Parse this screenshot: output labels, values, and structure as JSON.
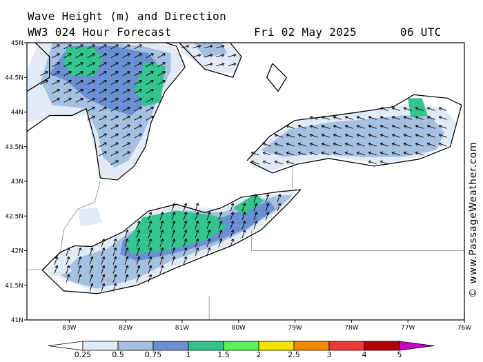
{
  "title": {
    "line1": "Wave Height (m) and Direction",
    "model": "WW3 024 Hour Forecast",
    "date": "Fri 02 May 2025",
    "time": "06 UTC"
  },
  "credit": "© www.PassageWeather.com",
  "map": {
    "lon_min": -83.75,
    "lon_max": -76.0,
    "lat_min": 41.0,
    "lat_max": 45.0,
    "lat_ticks": [
      {
        "v": 45.0,
        "label": "45N"
      },
      {
        "v": 44.5,
        "label": "44.5N"
      },
      {
        "v": 44.0,
        "label": "44N"
      },
      {
        "v": 43.5,
        "label": "43.5N"
      },
      {
        "v": 43.0,
        "label": "43N"
      },
      {
        "v": 42.5,
        "label": "42.5N"
      },
      {
        "v": 42.0,
        "label": "42N"
      },
      {
        "v": 41.5,
        "label": "41.5N"
      },
      {
        "v": 41.0,
        "label": "41N"
      }
    ],
    "lon_ticks": [
      {
        "v": -83,
        "label": "83W"
      },
      {
        "v": -82,
        "label": "82W"
      },
      {
        "v": -81,
        "label": "81W"
      },
      {
        "v": -80,
        "label": "80W"
      },
      {
        "v": -79,
        "label": "79W"
      },
      {
        "v": -78,
        "label": "78W"
      },
      {
        "v": -77,
        "label": "77W"
      },
      {
        "v": -76,
        "label": "76W"
      }
    ],
    "colors": {
      "h0": "#e2eaf6",
      "h1": "#a6c0e2",
      "h2": "#6a90d2",
      "h3": "#34c58e",
      "coast": "#000000",
      "border": "#a0a0a0"
    },
    "lake_huron": {
      "base": [
        [
          -83.55,
          45
        ],
        [
          -82.5,
          45
        ],
        [
          -82.1,
          44.95
        ],
        [
          -81.6,
          45.0
        ],
        [
          -81.15,
          44.95
        ],
        [
          -80.95,
          44.7
        ],
        [
          -81.3,
          44.3
        ],
        [
          -81.55,
          43.85
        ],
        [
          -81.65,
          43.5
        ],
        [
          -81.85,
          43.25
        ],
        [
          -82.15,
          43.05
        ],
        [
          -82.45,
          43.05
        ],
        [
          -82.55,
          43.5
        ],
        [
          -82.7,
          43.95
        ],
        [
          -83.2,
          43.95
        ],
        [
          -83.75,
          43.85
        ],
        [
          -83.75,
          44.6
        ]
      ],
      "mid": [
        [
          -83.3,
          45
        ],
        [
          -82.3,
          45
        ],
        [
          -81.7,
          44.95
        ],
        [
          -81.2,
          44.85
        ],
        [
          -81.2,
          44.6
        ],
        [
          -81.45,
          44.15
        ],
        [
          -81.7,
          43.65
        ],
        [
          -81.95,
          43.3
        ],
        [
          -82.2,
          43.2
        ],
        [
          -82.4,
          43.35
        ],
        [
          -82.5,
          43.7
        ],
        [
          -82.7,
          44.05
        ],
        [
          -83.3,
          44.1
        ],
        [
          -83.5,
          44.45
        ]
      ],
      "high": [
        [
          -82.95,
          44.95
        ],
        [
          -82.2,
          44.95
        ],
        [
          -81.6,
          44.85
        ],
        [
          -81.35,
          44.6
        ],
        [
          -81.55,
          44.2
        ],
        [
          -81.9,
          43.95
        ],
        [
          -82.3,
          44.05
        ],
        [
          -82.7,
          44.2
        ],
        [
          -83.05,
          44.45
        ],
        [
          -83.35,
          44.55
        ],
        [
          -83.1,
          44.85
        ]
      ],
      "top": [
        [
          [
            -83.05,
            44.92
          ],
          [
            -82.6,
            44.95
          ],
          [
            -82.4,
            44.78
          ],
          [
            -82.55,
            44.52
          ],
          [
            -82.95,
            44.52
          ],
          [
            -83.1,
            44.7
          ]
        ],
        [
          [
            -81.65,
            44.72
          ],
          [
            -81.3,
            44.66
          ],
          [
            -81.38,
            44.14
          ],
          [
            -81.68,
            44.08
          ],
          [
            -81.85,
            44.34
          ]
        ]
      ]
    },
    "georgian_bay": {
      "base": [
        [
          -81.05,
          45
        ],
        [
          -80.2,
          45
        ],
        [
          -79.95,
          44.8
        ],
        [
          -80.05,
          44.55
        ],
        [
          -80.55,
          44.6
        ],
        [
          -81.0,
          44.85
        ]
      ],
      "mid": [
        [
          -80.8,
          45
        ],
        [
          -80.3,
          45
        ],
        [
          -80.2,
          44.85
        ],
        [
          -80.6,
          44.78
        ]
      ]
    },
    "lake_erie": {
      "base": [
        [
          -83.4,
          41.7
        ],
        [
          -83.15,
          41.95
        ],
        [
          -82.9,
          42.05
        ],
        [
          -82.6,
          42.05
        ],
        [
          -82.05,
          42.25
        ],
        [
          -81.6,
          42.55
        ],
        [
          -81.1,
          42.65
        ],
        [
          -80.3,
          42.6
        ],
        [
          -79.95,
          42.75
        ],
        [
          -79.3,
          42.82
        ],
        [
          -78.95,
          42.9
        ],
        [
          -79.15,
          42.7
        ],
        [
          -79.6,
          42.35
        ],
        [
          -80.1,
          42.1
        ],
        [
          -80.6,
          41.95
        ],
        [
          -81.2,
          41.75
        ],
        [
          -81.8,
          41.5
        ],
        [
          -82.5,
          41.4
        ],
        [
          -83.0,
          41.55
        ]
      ],
      "mid": [
        [
          -83.15,
          41.65
        ],
        [
          -82.85,
          41.9
        ],
        [
          -82.35,
          42.02
        ],
        [
          -81.95,
          42.25
        ],
        [
          -81.5,
          42.48
        ],
        [
          -80.95,
          42.58
        ],
        [
          -80.3,
          42.55
        ],
        [
          -79.75,
          42.7
        ],
        [
          -79.25,
          42.8
        ],
        [
          -79.05,
          42.8
        ],
        [
          -79.3,
          42.6
        ],
        [
          -79.85,
          42.3
        ],
        [
          -80.5,
          42.05
        ],
        [
          -81.2,
          41.85
        ],
        [
          -81.8,
          41.6
        ],
        [
          -82.5,
          41.45
        ],
        [
          -82.95,
          41.55
        ]
      ],
      "high": [
        [
          -82.05,
          42.15
        ],
        [
          -81.65,
          42.38
        ],
        [
          -81.0,
          42.5
        ],
        [
          -80.3,
          42.48
        ],
        [
          -79.8,
          42.62
        ],
        [
          -79.45,
          42.72
        ],
        [
          -79.35,
          42.6
        ],
        [
          -79.85,
          42.32
        ],
        [
          -80.5,
          42.1
        ],
        [
          -81.2,
          41.95
        ],
        [
          -81.8,
          41.85
        ],
        [
          -82.1,
          41.95
        ]
      ],
      "top": [
        [
          [
            -81.7,
            42.48
          ],
          [
            -81.1,
            42.58
          ],
          [
            -80.4,
            42.5
          ],
          [
            -80.2,
            42.35
          ],
          [
            -80.6,
            42.15
          ],
          [
            -81.3,
            42.0
          ],
          [
            -81.9,
            41.95
          ],
          [
            -82.0,
            42.1
          ]
        ],
        [
          [
            -80.1,
            42.62
          ],
          [
            -79.7,
            42.82
          ],
          [
            -79.55,
            42.72
          ],
          [
            -79.9,
            42.52
          ]
        ]
      ]
    },
    "lake_ontario": {
      "base": [
        [
          -79.8,
          43.35
        ],
        [
          -79.5,
          43.6
        ],
        [
          -79.0,
          43.85
        ],
        [
          -78.5,
          43.95
        ],
        [
          -77.95,
          44.0
        ],
        [
          -77.35,
          44.05
        ],
        [
          -76.9,
          44.15
        ],
        [
          -76.35,
          44.05
        ],
        [
          -76.15,
          43.85
        ],
        [
          -76.25,
          43.55
        ],
        [
          -76.8,
          43.35
        ],
        [
          -77.5,
          43.25
        ],
        [
          -78.3,
          43.35
        ],
        [
          -78.95,
          43.28
        ],
        [
          -79.4,
          43.15
        ],
        [
          -79.75,
          43.2
        ]
      ],
      "mid": [
        [
          -79.6,
          43.45
        ],
        [
          -79.1,
          43.75
        ],
        [
          -78.4,
          43.85
        ],
        [
          -77.7,
          43.9
        ],
        [
          -77.1,
          43.95
        ],
        [
          -76.6,
          43.95
        ],
        [
          -76.35,
          43.7
        ],
        [
          -76.5,
          43.45
        ],
        [
          -77.1,
          43.35
        ],
        [
          -77.8,
          43.35
        ],
        [
          -78.6,
          43.4
        ],
        [
          -79.2,
          43.35
        ]
      ],
      "top": [
        [
          [
            -77.0,
            44.2
          ],
          [
            -76.75,
            44.2
          ],
          [
            -76.65,
            43.95
          ],
          [
            -76.95,
            43.92
          ]
        ]
      ]
    },
    "small_lakes": [
      [
        [
          -82.85,
          42.6
        ],
        [
          -82.5,
          42.62
        ],
        [
          -82.42,
          42.4
        ],
        [
          -82.8,
          42.35
        ]
      ],
      [
        [
          -83.42,
          41.75
        ],
        [
          -83.05,
          41.85
        ],
        [
          -82.95,
          41.7
        ],
        [
          -83.3,
          41.62
        ]
      ]
    ],
    "coastlines": [
      [
        [
          -83.75,
          43.72
        ],
        [
          -83.35,
          43.95
        ],
        [
          -82.95,
          43.95
        ],
        [
          -82.7,
          44.05
        ],
        [
          -82.55,
          43.6
        ],
        [
          -82.45,
          43.05
        ],
        [
          -82.15,
          43.02
        ],
        [
          -81.85,
          43.22
        ],
        [
          -81.65,
          43.5
        ],
        [
          -81.55,
          43.85
        ],
        [
          -81.3,
          44.3
        ],
        [
          -80.95,
          44.65
        ],
        [
          -81.1,
          44.95
        ],
        [
          -81.3,
          45.0
        ]
      ],
      [
        [
          -83.6,
          45.0
        ],
        [
          -83.35,
          44.8
        ],
        [
          -83.35,
          44.5
        ],
        [
          -83.75,
          44.3
        ]
      ],
      [
        [
          -81.05,
          45.0
        ],
        [
          -80.6,
          44.62
        ],
        [
          -80.1,
          44.5
        ],
        [
          -79.95,
          44.8
        ],
        [
          -80.15,
          45.0
        ]
      ],
      [
        [
          -83.48,
          41.72
        ],
        [
          -83.1,
          41.42
        ],
        [
          -82.5,
          41.38
        ],
        [
          -81.8,
          41.5
        ],
        [
          -81.2,
          41.72
        ],
        [
          -80.6,
          41.92
        ],
        [
          -80.1,
          42.08
        ],
        [
          -79.6,
          42.3
        ],
        [
          -79.1,
          42.7
        ],
        [
          -78.9,
          42.88
        ],
        [
          -79.3,
          42.85
        ],
        [
          -79.95,
          42.77
        ],
        [
          -80.3,
          42.62
        ],
        [
          -80.6,
          42.55
        ],
        [
          -81.1,
          42.67
        ],
        [
          -81.6,
          42.57
        ],
        [
          -82.05,
          42.27
        ],
        [
          -82.6,
          42.06
        ],
        [
          -82.9,
          42.07
        ],
        [
          -83.15,
          41.98
        ],
        [
          -83.48,
          41.72
        ]
      ],
      [
        [
          -79.85,
          43.3
        ],
        [
          -79.45,
          43.65
        ],
        [
          -79.0,
          43.88
        ],
        [
          -78.3,
          43.95
        ],
        [
          -77.7,
          44.02
        ],
        [
          -77.25,
          44.08
        ],
        [
          -76.9,
          44.25
        ],
        [
          -76.3,
          44.2
        ],
        [
          -76.05,
          44.1
        ],
        [
          -76.15,
          43.8
        ],
        [
          -76.25,
          43.5
        ],
        [
          -76.8,
          43.32
        ],
        [
          -77.6,
          43.22
        ],
        [
          -78.4,
          43.33
        ],
        [
          -78.95,
          43.25
        ],
        [
          -79.4,
          43.12
        ],
        [
          -79.8,
          43.28
        ]
      ],
      [
        [
          -79.4,
          44.7
        ],
        [
          -79.15,
          44.5
        ],
        [
          -79.3,
          44.3
        ],
        [
          -79.5,
          44.5
        ],
        [
          -79.4,
          44.7
        ]
      ]
    ],
    "borders": [
      [
        [
          -83.75,
          41.72
        ],
        [
          -83.45,
          41.73
        ]
      ],
      [
        [
          -80.52,
          41.35
        ],
        [
          -80.52,
          41.0
        ]
      ],
      [
        [
          -79.77,
          42.3
        ],
        [
          -79.77,
          42.0
        ],
        [
          -76.0,
          42.0
        ]
      ],
      [
        [
          -82.45,
          43.0
        ],
        [
          -82.55,
          42.7
        ],
        [
          -82.85,
          42.6
        ],
        [
          -83.1,
          42.3
        ],
        [
          -83.15,
          42.0
        ],
        [
          -83.45,
          41.73
        ]
      ],
      [
        [
          -79.05,
          43.25
        ],
        [
          -79.05,
          42.9
        ]
      ]
    ]
  },
  "colorbar": {
    "colors": [
      "#ffffff",
      "#e2eaf6",
      "#a6c0e2",
      "#6a90d2",
      "#34c58e",
      "#5cf05c",
      "#f5e300",
      "#f28a00",
      "#ef3a3a",
      "#b30000",
      "#c800c8"
    ],
    "labels": [
      "0.25",
      "0.5",
      "0.75",
      "1",
      "1.5",
      "2",
      "2.5",
      "3",
      "4",
      "5"
    ]
  }
}
